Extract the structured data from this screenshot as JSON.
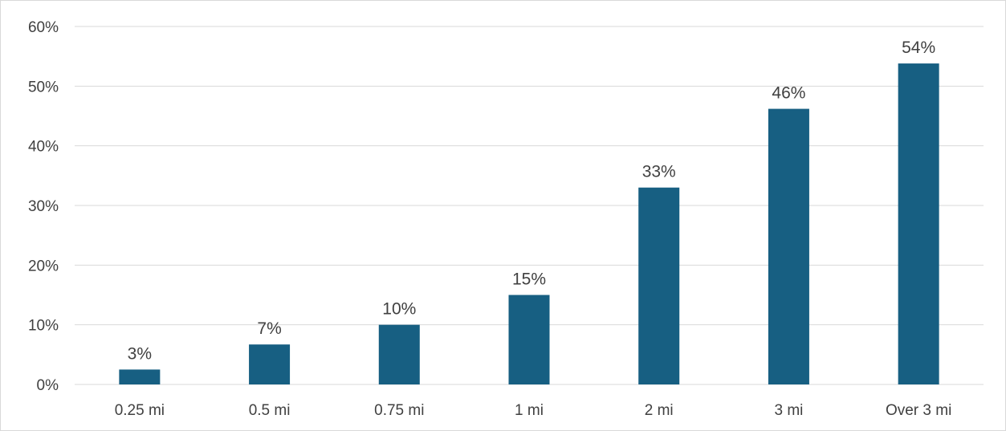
{
  "chart_data": {
    "type": "bar",
    "categories": [
      "0.25 mi",
      "0.5 mi",
      "0.75 mi",
      "1 mi",
      "2 mi",
      "3 mi",
      "Over 3 mi"
    ],
    "values": [
      2.5,
      6.7,
      10,
      15,
      33,
      46.2,
      53.8
    ],
    "data_labels": [
      "3%",
      "7%",
      "10%",
      "15%",
      "33%",
      "46%",
      "54%"
    ],
    "ylim": [
      0,
      60
    ],
    "yticks": [
      0,
      10,
      20,
      30,
      40,
      50,
      60
    ],
    "ytick_labels": [
      "0%",
      "10%",
      "20%",
      "30%",
      "40%",
      "50%",
      "60%"
    ],
    "grid": true,
    "legend": "none",
    "bar_color": "#175f82",
    "grid_color": "#d9d9d9",
    "text_color": "#404040"
  }
}
